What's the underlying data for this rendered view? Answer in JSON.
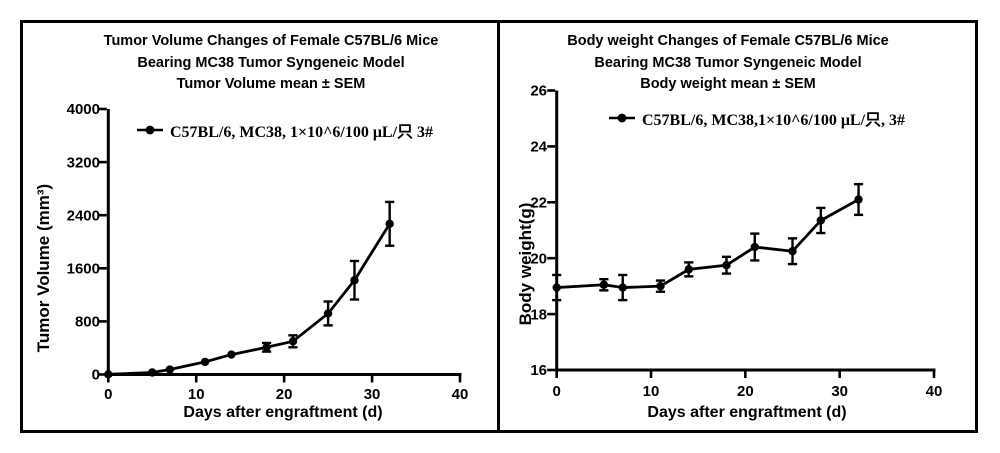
{
  "figure": {
    "background": "#ffffff",
    "ink_color": "#000000"
  },
  "chart_data": [
    {
      "id": "tumor-volume",
      "type": "line",
      "title_lines": [
        "Tumor Volume Changes of Female C57BL/6 Mice",
        "Bearing MC38 Tumor Syngeneic Model",
        "Tumor Volume mean ± SEM"
      ],
      "legend": {
        "label": "C57BL/6, MC38, 1×10^6/100 μL/只 3#",
        "marker": "filled-circle-on-line"
      },
      "xlabel": "Days after engraftment (d)",
      "ylabel": "Tumor Volume (mm³)",
      "x": [
        0,
        5,
        7,
        11,
        14,
        18,
        21,
        25,
        28,
        32
      ],
      "series": [
        {
          "name": "C57BL/6, MC38, 1×10^6/100 μL/只 3#",
          "values": [
            3,
            30,
            75,
            190,
            300,
            410,
            500,
            920,
            1420,
            2270
          ],
          "sem": [
            0,
            0,
            0,
            0,
            0,
            65,
            90,
            180,
            290,
            330
          ]
        }
      ],
      "xlim": [
        0,
        40
      ],
      "ylim": [
        0,
        4000
      ],
      "xticks": [
        0,
        10,
        20,
        30,
        40
      ],
      "yticks": [
        0,
        800,
        1600,
        2400,
        3200,
        4000
      ],
      "grid": false,
      "legend_position": "top-inside-left",
      "error_bars": "mean ± SEM",
      "color": "#000000"
    },
    {
      "id": "body-weight",
      "type": "line",
      "title_lines": [
        "Body weight Changes of Female C57BL/6 Mice",
        "Bearing MC38 Tumor Syngeneic Model",
        "Body weight mean ± SEM"
      ],
      "legend": {
        "label": "C57BL/6, MC38,1×10^6/100 μL/只, 3#",
        "marker": "filled-circle-on-line"
      },
      "xlabel": "Days after engraftment (d)",
      "ylabel": "Body weight(g)",
      "x": [
        0,
        5,
        7,
        11,
        14,
        18,
        21,
        25,
        28,
        32
      ],
      "series": [
        {
          "name": "C57BL/6, MC38,1×10^6/100 μL/只, 3#",
          "values": [
            18.95,
            19.05,
            18.95,
            19.0,
            19.6,
            19.75,
            20.4,
            20.25,
            21.35,
            22.1
          ],
          "sem": [
            0.45,
            0.2,
            0.45,
            0.2,
            0.25,
            0.3,
            0.48,
            0.46,
            0.45,
            0.55
          ]
        }
      ],
      "xlim": [
        0,
        40
      ],
      "ylim": [
        16,
        26
      ],
      "xticks": [
        0,
        10,
        20,
        30,
        40
      ],
      "yticks": [
        16,
        18,
        20,
        22,
        24,
        26
      ],
      "grid": false,
      "legend_position": "top-inside-left",
      "error_bars": "mean ± SEM",
      "color": "#000000"
    }
  ]
}
